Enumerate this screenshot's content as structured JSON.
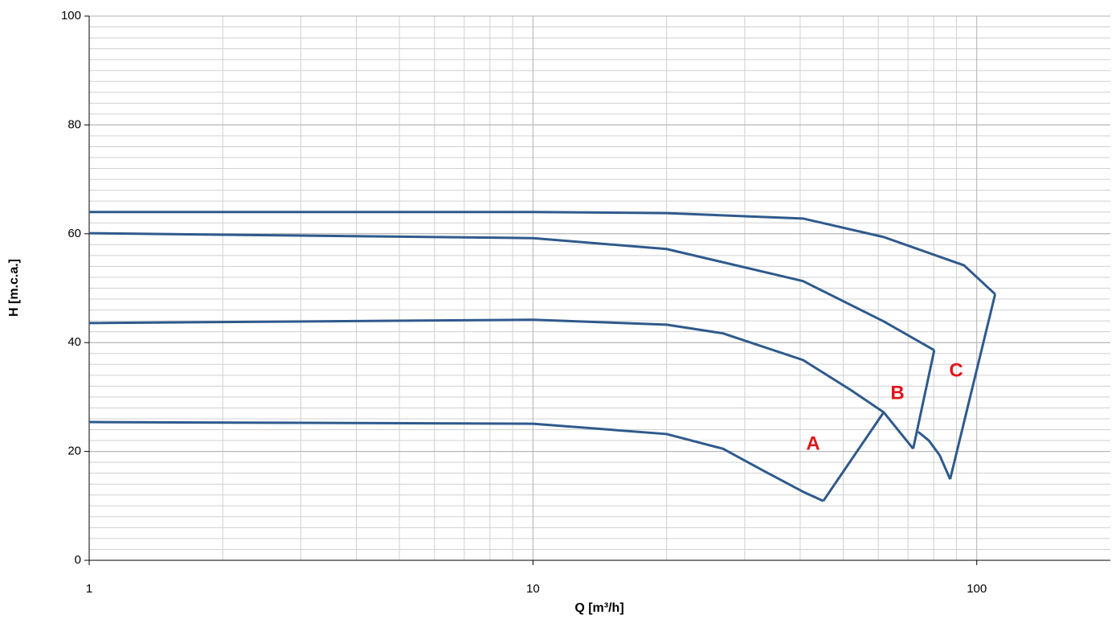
{
  "chart_data": {
    "type": "line",
    "x_label": "Q [m³/h]",
    "y_label": "H [m.c.a.]",
    "xscale": "log",
    "xlim": [
      1,
      200
    ],
    "xticks": [
      1,
      10,
      100
    ],
    "ylim": [
      0,
      100
    ],
    "yticks": [
      0,
      20,
      40,
      60,
      80,
      100
    ],
    "grid": true,
    "minor_grid": true,
    "series": [
      {
        "color": "#2f5a8c",
        "x": [
          1,
          10,
          20,
          40.6,
          61.7,
          93.6,
          110
        ],
        "values": [
          64.0,
          64.0,
          63.8,
          62.8,
          59.4,
          54.2,
          48.9
        ]
      },
      {
        "color": "#2f5a8c",
        "x": [
          1,
          10,
          20,
          40.6,
          61.7,
          80.2
        ],
        "values": [
          60.1,
          59.2,
          57.2,
          51.3,
          43.9,
          38.6
        ]
      },
      {
        "color": "#2f5a8c",
        "x": [
          1,
          10,
          20,
          26.8,
          40.6,
          52,
          61.7,
          71.9
        ],
        "values": [
          43.6,
          44.2,
          43.3,
          41.7,
          36.8,
          31.3,
          27.2,
          20.5
        ]
      },
      {
        "color": "#2f5a8c",
        "x": [
          1,
          10,
          20,
          26.8,
          33,
          40.6,
          45.1
        ],
        "values": [
          25.4,
          25.1,
          23.2,
          20.5,
          16.5,
          12.6,
          10.9
        ]
      },
      {
        "color": "#2f5a8c",
        "x": [
          45.1,
          61.7
        ],
        "values": [
          10.9,
          27.2
        ]
      },
      {
        "color": "#2f5a8c",
        "x": [
          80.2,
          71.9
        ],
        "values": [
          38.6,
          20.5
        ]
      },
      {
        "color": "#2f5a8c",
        "x": [
          73.8,
          78,
          82.5,
          87.1
        ],
        "values": [
          23.6,
          22.0,
          19.3,
          14.9
        ]
      },
      {
        "color": "#2f5a8c",
        "x": [
          87.1,
          110
        ],
        "values": [
          14.9,
          48.9
        ]
      }
    ],
    "annotations": [
      "A",
      "B",
      "C"
    ]
  }
}
